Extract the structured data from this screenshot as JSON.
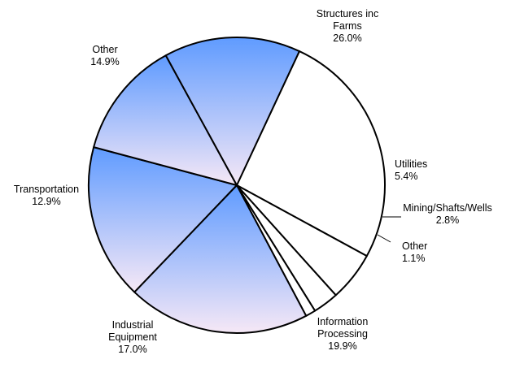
{
  "chart_data": {
    "type": "pie",
    "title": "",
    "slices": [
      {
        "label": [
          "Structures inc",
          "Farms"
        ],
        "value": 26.0,
        "value_label": "26.0%",
        "fill": "white"
      },
      {
        "label": [
          "Utilities"
        ],
        "value": 5.4,
        "value_label": "5.4%",
        "fill": "white"
      },
      {
        "label": [
          "Mining/Shafts/Wells"
        ],
        "value": 2.8,
        "value_label": "2.8%",
        "fill": "white"
      },
      {
        "label": [
          "Other"
        ],
        "value": 1.1,
        "value_label": "1.1%",
        "fill": "white"
      },
      {
        "label": [
          "Information",
          "Processing"
        ],
        "value": 19.9,
        "value_label": "19.9%",
        "fill": "gradient"
      },
      {
        "label": [
          "Industrial",
          "Equipment"
        ],
        "value": 17.0,
        "value_label": "17.0%",
        "fill": "gradient"
      },
      {
        "label": [
          "Transportation"
        ],
        "value": 12.9,
        "value_label": "12.9%",
        "fill": "gradient"
      },
      {
        "label": [
          "Other"
        ],
        "value": 14.9,
        "value_label": "14.9%",
        "fill": "gradient"
      }
    ],
    "start_angle_deg": 65,
    "direction": "clockwise",
    "colors": {
      "white_fill": "#ffffff",
      "gradient_top": "#5f9bff",
      "gradient_bottom": "#f6e8f6",
      "stroke": "#000000"
    }
  }
}
